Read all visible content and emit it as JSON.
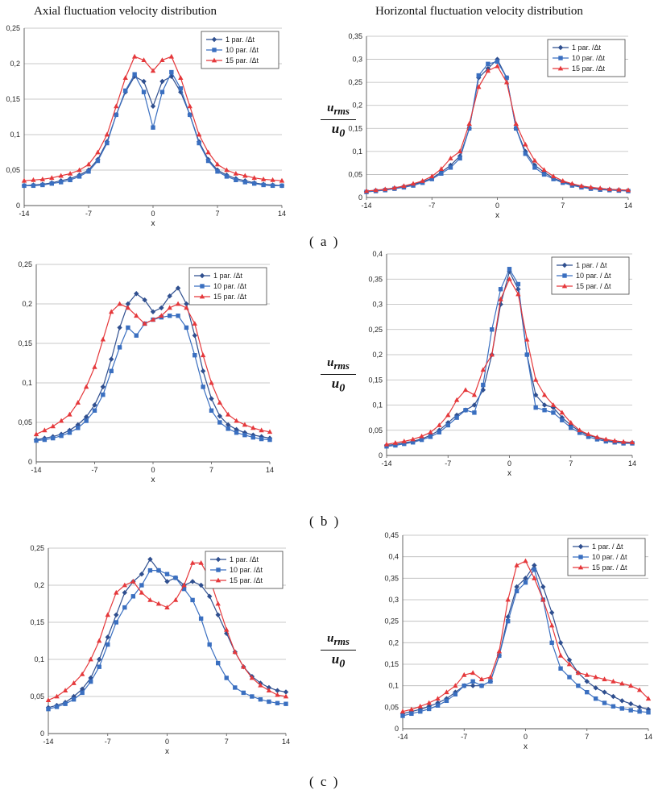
{
  "titles": {
    "left": "Axial fluctuation velocity distribution",
    "right": "Horizontal fluctuation velocity distribution"
  },
  "row_labels": [
    "( a )",
    "( b )",
    "( c )"
  ],
  "ylabel": {
    "numerator": "u",
    "numerator_sub": "rms",
    "denominator": "u",
    "denominator_sub": "0"
  },
  "colors": {
    "s1": "#2f4f8f",
    "s2": "#3a6fc0",
    "s3": "#e5383b"
  },
  "chart_data": [
    {
      "id": "a-left",
      "type": "line",
      "xlabel": "x",
      "xticks": [
        "-14",
        "-7",
        "0",
        "7",
        "14"
      ],
      "xlim": [
        -14,
        14
      ],
      "ylim": [
        0,
        0.25
      ],
      "yticks": [
        "0",
        "0,05",
        "0,1",
        "0,15",
        "0,2",
        "0,25"
      ],
      "x": [
        -14,
        -13,
        -12,
        -11,
        -10,
        -9,
        -8,
        -7,
        -6,
        -5,
        -4,
        -3,
        -2,
        -1,
        0,
        1,
        2,
        3,
        4,
        5,
        6,
        7,
        8,
        9,
        10,
        11,
        12,
        13,
        14
      ],
      "series": [
        {
          "name": "1 par. /Δt",
          "values": [
            0.028,
            0.029,
            0.03,
            0.032,
            0.035,
            0.038,
            0.043,
            0.05,
            0.065,
            0.09,
            0.128,
            0.16,
            0.182,
            0.175,
            0.14,
            0.175,
            0.182,
            0.16,
            0.128,
            0.09,
            0.065,
            0.05,
            0.043,
            0.038,
            0.035,
            0.032,
            0.03,
            0.029,
            0.028
          ]
        },
        {
          "name": "10 par. /Δt",
          "values": [
            0.028,
            0.028,
            0.029,
            0.031,
            0.033,
            0.036,
            0.041,
            0.048,
            0.063,
            0.088,
            0.128,
            0.162,
            0.185,
            0.16,
            0.11,
            0.16,
            0.188,
            0.165,
            0.128,
            0.088,
            0.063,
            0.048,
            0.041,
            0.036,
            0.033,
            0.031,
            0.029,
            0.028,
            0.028
          ]
        },
        {
          "name": "15 par. /Δt",
          "values": [
            0.035,
            0.036,
            0.037,
            0.039,
            0.042,
            0.045,
            0.05,
            0.058,
            0.075,
            0.1,
            0.14,
            0.18,
            0.21,
            0.205,
            0.19,
            0.205,
            0.21,
            0.18,
            0.14,
            0.1,
            0.075,
            0.058,
            0.05,
            0.045,
            0.042,
            0.039,
            0.037,
            0.036,
            0.035
          ]
        }
      ]
    },
    {
      "id": "a-right",
      "type": "line",
      "xlabel": "x",
      "xticks": [
        "-14",
        "-7",
        "0",
        "7",
        "14"
      ],
      "xlim": [
        -14,
        14
      ],
      "ylim": [
        0,
        0.35
      ],
      "yticks": [
        "0",
        "0,05",
        "0,1",
        "0,15",
        "0,2",
        "0,25",
        "0,3",
        "0,35"
      ],
      "x": [
        -14,
        -13,
        -12,
        -11,
        -10,
        -9,
        -8,
        -7,
        -6,
        -5,
        -4,
        -3,
        -2,
        -1,
        0,
        1,
        2,
        3,
        4,
        5,
        6,
        7,
        8,
        9,
        10,
        11,
        12,
        13,
        14
      ],
      "series": [
        {
          "name": "1 par. /Δt",
          "values": [
            0.013,
            0.015,
            0.017,
            0.02,
            0.024,
            0.028,
            0.034,
            0.042,
            0.055,
            0.07,
            0.09,
            0.15,
            0.26,
            0.28,
            0.3,
            0.26,
            0.15,
            0.1,
            0.07,
            0.055,
            0.042,
            0.034,
            0.028,
            0.024,
            0.02,
            0.018,
            0.017,
            0.016,
            0.015
          ]
        },
        {
          "name": "10 par. /Δt",
          "values": [
            0.012,
            0.014,
            0.016,
            0.019,
            0.022,
            0.026,
            0.032,
            0.04,
            0.052,
            0.065,
            0.085,
            0.15,
            0.265,
            0.29,
            0.295,
            0.26,
            0.15,
            0.095,
            0.065,
            0.05,
            0.04,
            0.032,
            0.026,
            0.022,
            0.019,
            0.017,
            0.016,
            0.015,
            0.014
          ]
        },
        {
          "name": "15 par. /Δt",
          "values": [
            0.014,
            0.016,
            0.018,
            0.021,
            0.025,
            0.03,
            0.036,
            0.046,
            0.062,
            0.085,
            0.1,
            0.16,
            0.24,
            0.275,
            0.285,
            0.25,
            0.16,
            0.115,
            0.08,
            0.06,
            0.046,
            0.036,
            0.03,
            0.025,
            0.022,
            0.02,
            0.018,
            0.017,
            0.016
          ]
        }
      ]
    },
    {
      "id": "b-left",
      "type": "line",
      "xlabel": "x",
      "xticks": [
        "-14",
        "-7",
        "0",
        "7",
        "14"
      ],
      "xlim": [
        -14,
        14
      ],
      "ylim": [
        0,
        0.25
      ],
      "yticks": [
        "0",
        "0,05",
        "0,1",
        "0,15",
        "0,2",
        "0,25"
      ],
      "x": [
        -14,
        -13,
        -12,
        -11,
        -10,
        -9,
        -8,
        -7,
        -6,
        -5,
        -4,
        -3,
        -2,
        -1,
        0,
        1,
        2,
        3,
        4,
        5,
        6,
        7,
        8,
        9,
        10,
        11,
        12,
        13,
        14
      ],
      "series": [
        {
          "name": "1 par. /Δt",
          "values": [
            0.028,
            0.03,
            0.032,
            0.035,
            0.04,
            0.047,
            0.057,
            0.072,
            0.095,
            0.13,
            0.17,
            0.2,
            0.213,
            0.205,
            0.19,
            0.195,
            0.21,
            0.22,
            0.2,
            0.16,
            0.115,
            0.08,
            0.058,
            0.047,
            0.041,
            0.037,
            0.034,
            0.032,
            0.03
          ]
        },
        {
          "name": "10 par. /Δt",
          "values": [
            0.027,
            0.028,
            0.03,
            0.033,
            0.037,
            0.043,
            0.052,
            0.065,
            0.085,
            0.115,
            0.145,
            0.17,
            0.16,
            0.175,
            0.18,
            0.183,
            0.185,
            0.185,
            0.17,
            0.135,
            0.095,
            0.065,
            0.05,
            0.042,
            0.037,
            0.034,
            0.031,
            0.029,
            0.028
          ]
        },
        {
          "name": "15 par. /Δt",
          "values": [
            0.035,
            0.04,
            0.045,
            0.052,
            0.06,
            0.075,
            0.095,
            0.12,
            0.155,
            0.19,
            0.2,
            0.195,
            0.185,
            0.175,
            0.18,
            0.185,
            0.195,
            0.2,
            0.195,
            0.175,
            0.135,
            0.1,
            0.075,
            0.06,
            0.052,
            0.047,
            0.043,
            0.04,
            0.038
          ]
        }
      ]
    },
    {
      "id": "b-right",
      "type": "line",
      "xlabel": "x",
      "xticks": [
        "-14",
        "-7",
        "0",
        "7",
        "14"
      ],
      "xlim": [
        -14,
        14
      ],
      "ylim": [
        0,
        0.4
      ],
      "yticks": [
        "0",
        "0,05",
        "0,1",
        "0,15",
        "0,2",
        "0,25",
        "0,3",
        "0,35",
        "0,4"
      ],
      "x": [
        -14,
        -13,
        -12,
        -11,
        -10,
        -9,
        -8,
        -7,
        -6,
        -5,
        -4,
        -3,
        -2,
        -1,
        0,
        1,
        2,
        3,
        4,
        5,
        6,
        7,
        8,
        9,
        10,
        11,
        12,
        13,
        14
      ],
      "series": [
        {
          "name": "1 par. / Δt",
          "values": [
            0.02,
            0.022,
            0.025,
            0.028,
            0.033,
            0.04,
            0.05,
            0.065,
            0.08,
            0.09,
            0.1,
            0.13,
            0.2,
            0.3,
            0.365,
            0.33,
            0.2,
            0.12,
            0.1,
            0.095,
            0.075,
            0.06,
            0.048,
            0.04,
            0.035,
            0.03,
            0.027,
            0.025,
            0.025
          ]
        },
        {
          "name": "10 par. / Δt",
          "values": [
            0.018,
            0.02,
            0.023,
            0.026,
            0.031,
            0.037,
            0.046,
            0.06,
            0.075,
            0.09,
            0.085,
            0.14,
            0.25,
            0.33,
            0.37,
            0.34,
            0.2,
            0.095,
            0.09,
            0.085,
            0.07,
            0.055,
            0.045,
            0.037,
            0.032,
            0.028,
            0.026,
            0.024,
            0.024
          ]
        },
        {
          "name": "15 par. / Δt",
          "values": [
            0.022,
            0.025,
            0.028,
            0.032,
            0.038,
            0.046,
            0.06,
            0.08,
            0.11,
            0.13,
            0.12,
            0.17,
            0.2,
            0.31,
            0.35,
            0.32,
            0.23,
            0.15,
            0.12,
            0.1,
            0.085,
            0.065,
            0.05,
            0.042,
            0.036,
            0.032,
            0.029,
            0.027,
            0.026
          ]
        }
      ]
    },
    {
      "id": "c-left",
      "type": "line",
      "xlabel": "x",
      "xticks": [
        "-14",
        "-7",
        "0",
        "7",
        "14"
      ],
      "xlim": [
        -14,
        14
      ],
      "ylim": [
        0,
        0.25
      ],
      "yticks": [
        "0",
        "0,05",
        "0,1",
        "0,15",
        "0,2",
        "0,25"
      ],
      "x": [
        -14,
        -13,
        -12,
        -11,
        -10,
        -9,
        -8,
        -7,
        -6,
        -5,
        -4,
        -3,
        -2,
        -1,
        0,
        1,
        2,
        3,
        4,
        5,
        6,
        7,
        8,
        9,
        10,
        11,
        12,
        13,
        14
      ],
      "series": [
        {
          "name": "1 par. /Δt",
          "values": [
            0.035,
            0.038,
            0.042,
            0.05,
            0.06,
            0.075,
            0.1,
            0.13,
            0.16,
            0.19,
            0.205,
            0.215,
            0.235,
            0.22,
            0.205,
            0.21,
            0.2,
            0.205,
            0.2,
            0.185,
            0.16,
            0.135,
            0.11,
            0.09,
            0.077,
            0.068,
            0.062,
            0.058,
            0.056
          ]
        },
        {
          "name": "10 par. /Δt",
          "values": [
            0.033,
            0.036,
            0.04,
            0.046,
            0.055,
            0.07,
            0.09,
            0.12,
            0.15,
            0.17,
            0.185,
            0.2,
            0.22,
            0.22,
            0.215,
            0.21,
            0.195,
            0.18,
            0.155,
            0.12,
            0.095,
            0.075,
            0.062,
            0.055,
            0.05,
            0.046,
            0.043,
            0.041,
            0.04
          ]
        },
        {
          "name": "15 par. /Δt",
          "values": [
            0.045,
            0.05,
            0.058,
            0.068,
            0.08,
            0.1,
            0.125,
            0.16,
            0.19,
            0.2,
            0.205,
            0.19,
            0.18,
            0.175,
            0.17,
            0.18,
            0.2,
            0.23,
            0.23,
            0.21,
            0.175,
            0.14,
            0.11,
            0.09,
            0.075,
            0.065,
            0.058,
            0.052,
            0.05
          ]
        }
      ]
    },
    {
      "id": "c-right",
      "type": "line",
      "xlabel": "x",
      "xticks": [
        "-14",
        "-7",
        "0",
        "7",
        "14"
      ],
      "xlim": [
        -14,
        14
      ],
      "ylim": [
        0,
        0.45
      ],
      "yticks": [
        "0",
        "0,05",
        "0,1",
        "0,15",
        "0,2",
        "0,25",
        "0,3",
        "0,35",
        "0,4",
        "0,45"
      ],
      "x": [
        -14,
        -13,
        -12,
        -11,
        -10,
        -9,
        -8,
        -7,
        -6,
        -5,
        -4,
        -3,
        -2,
        -1,
        0,
        1,
        2,
        3,
        4,
        5,
        6,
        7,
        8,
        9,
        10,
        11,
        12,
        13,
        14
      ],
      "series": [
        {
          "name": "1 par. / Δt",
          "values": [
            0.035,
            0.04,
            0.045,
            0.052,
            0.06,
            0.07,
            0.085,
            0.1,
            0.1,
            0.1,
            0.11,
            0.17,
            0.26,
            0.33,
            0.35,
            0.38,
            0.33,
            0.27,
            0.2,
            0.16,
            0.13,
            0.11,
            0.095,
            0.085,
            0.075,
            0.065,
            0.058,
            0.05,
            0.045
          ]
        },
        {
          "name": "10 par. / Δt",
          "values": [
            0.03,
            0.035,
            0.04,
            0.046,
            0.054,
            0.065,
            0.08,
            0.1,
            0.11,
            0.1,
            0.11,
            0.17,
            0.25,
            0.32,
            0.34,
            0.37,
            0.3,
            0.2,
            0.14,
            0.12,
            0.1,
            0.085,
            0.07,
            0.06,
            0.052,
            0.047,
            0.043,
            0.04,
            0.038
          ]
        },
        {
          "name": "15 par. / Δt",
          "values": [
            0.04,
            0.045,
            0.052,
            0.06,
            0.07,
            0.085,
            0.1,
            0.125,
            0.13,
            0.115,
            0.12,
            0.18,
            0.3,
            0.38,
            0.39,
            0.35,
            0.3,
            0.24,
            0.17,
            0.15,
            0.13,
            0.125,
            0.12,
            0.115,
            0.11,
            0.105,
            0.1,
            0.09,
            0.07
          ]
        }
      ]
    }
  ]
}
